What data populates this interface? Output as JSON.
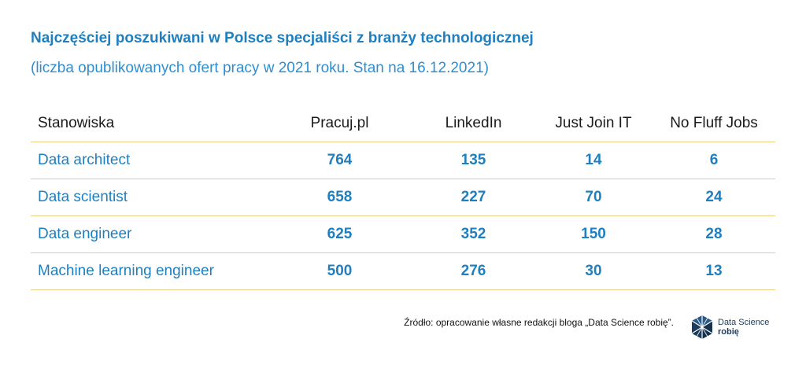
{
  "title": "Najczęściej poszukiwani w Polsce specjaliści z branży technologicznej",
  "subtitle": "(liczba opublikowanych ofert pracy w 2021 roku. Stan na 16.12.2021)",
  "table": {
    "headers": [
      "Stanowiska",
      "Pracuj.pl",
      "LinkedIn",
      "Just Join IT",
      "No Fluff Jobs"
    ],
    "rows": [
      {
        "position": "Data architect",
        "values": [
          "764",
          "135",
          "14",
          "6"
        ]
      },
      {
        "position": "Data scientist",
        "values": [
          "658",
          "227",
          "70",
          "24"
        ]
      },
      {
        "position": "Data engineer",
        "values": [
          "625",
          "352",
          "150",
          "28"
        ]
      },
      {
        "position": "Machine learning engineer",
        "values": [
          "500",
          "276",
          "30",
          "13"
        ]
      }
    ]
  },
  "source": "Źródło: opracowanie własne redakcji bloga „Data Science robię”.",
  "logo": {
    "line1": "Data Science",
    "line2": "robię",
    "icon": "dark-blue-geometric-icon"
  },
  "colors": {
    "accent": "#1f7fbf",
    "divider": "#e8cf85",
    "logo": "#1d3b5b"
  }
}
